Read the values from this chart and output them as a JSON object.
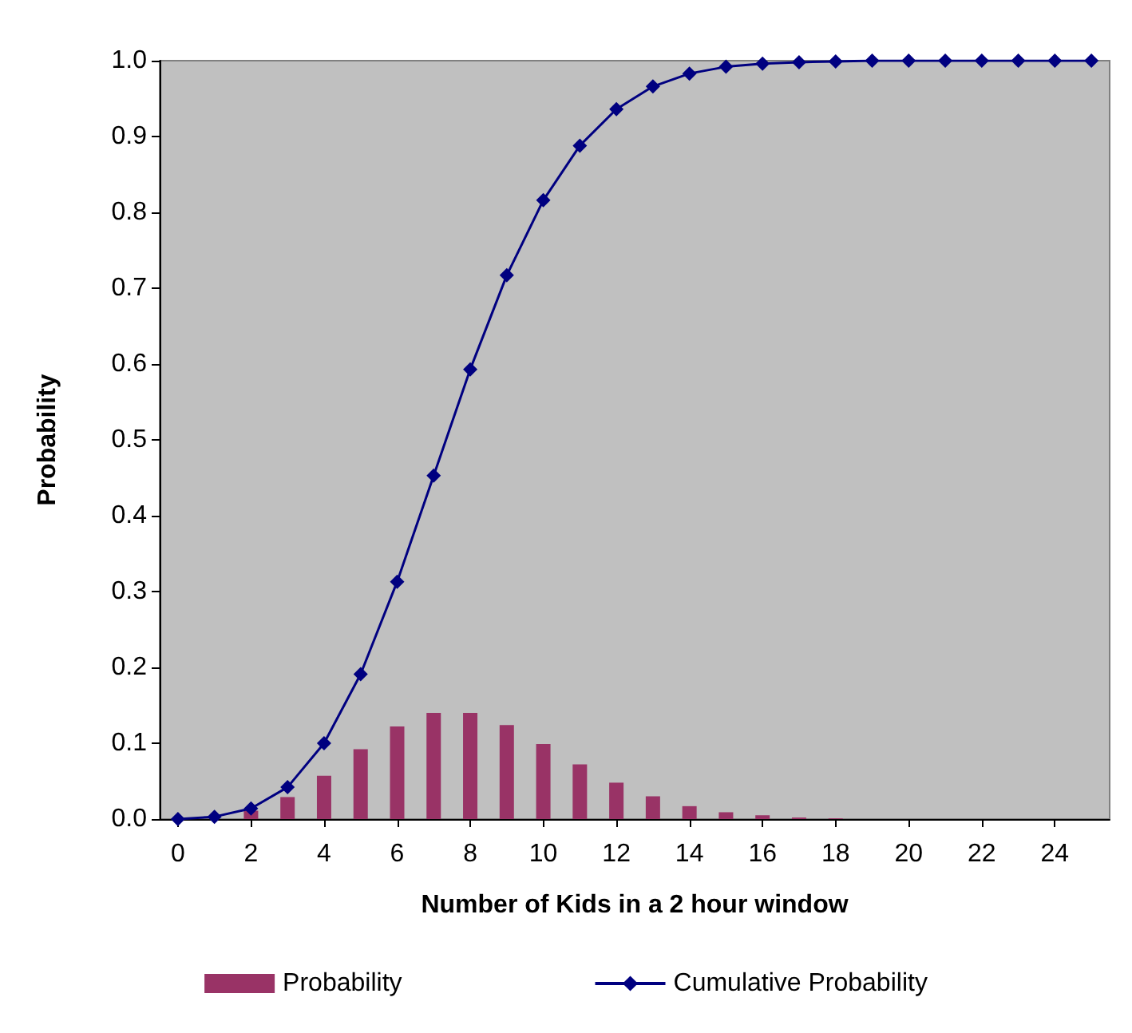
{
  "chart_data": {
    "type": "bar",
    "xlabel": "Number of Kids in a 2 hour window",
    "ylabel": "Probability",
    "x": [
      0,
      1,
      2,
      3,
      4,
      5,
      6,
      7,
      8,
      9,
      10,
      11,
      12,
      13,
      14,
      15,
      16,
      17,
      18,
      19,
      20,
      21,
      22,
      23,
      24,
      25
    ],
    "series": [
      {
        "name": "Probability",
        "color": "#993366",
        "values": [
          0,
          null,
          0.011,
          0.029,
          0.057,
          0.092,
          0.122,
          0.14,
          0.14,
          0.124,
          0.099,
          0.072,
          0.048,
          0.03,
          0.017,
          0.009,
          0.005,
          0.002,
          0.001,
          0,
          0,
          0,
          0,
          0,
          0,
          0
        ]
      },
      {
        "name": "Cumulative Probability",
        "type": "line",
        "color": "#000080",
        "marker": "diamond",
        "values": [
          0,
          0.003,
          0.014,
          0.042,
          0.1,
          0.191,
          0.313,
          0.453,
          0.593,
          0.717,
          0.816,
          0.888,
          0.936,
          0.966,
          0.983,
          0.992,
          0.996,
          0.998,
          0.999,
          1.0,
          1.0,
          1.0,
          1.0,
          1.0,
          1.0,
          1.0
        ]
      }
    ],
    "xlim": [
      -0.5,
      25.5
    ],
    "xticks": [
      0,
      2,
      4,
      6,
      8,
      10,
      12,
      14,
      16,
      18,
      20,
      22,
      24
    ],
    "ylim": [
      0,
      1
    ],
    "yticks": [
      {
        "value": 0,
        "label": "0.0"
      },
      {
        "value": 0.1,
        "label": "0.1"
      },
      {
        "value": 0.2,
        "label": "0.2"
      },
      {
        "value": 0.3,
        "label": "0.3"
      },
      {
        "value": 0.4,
        "label": "0.4"
      },
      {
        "value": 0.5,
        "label": "0.5"
      },
      {
        "value": 0.6,
        "label": "0.6"
      },
      {
        "value": 0.7,
        "label": "0.7"
      },
      {
        "value": 0.8,
        "label": "0.8"
      },
      {
        "value": 0.9,
        "label": "0.9"
      },
      {
        "value": 1,
        "label": "1.0"
      }
    ],
    "grid": false,
    "legend": "bottom"
  }
}
